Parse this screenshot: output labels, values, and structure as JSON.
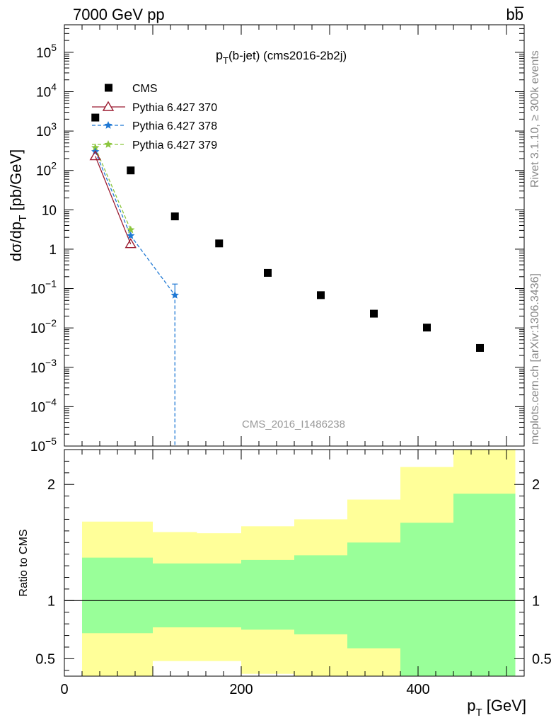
{
  "header": {
    "energy_label": "7000 GeV pp",
    "process_label": "bb̅"
  },
  "plot_title": {
    "main": "p",
    "sub": "T",
    "rest": "(b-jet) (cms2016-2b2j)"
  },
  "side_labels": {
    "rivet": "Rivet 3.1.10, ≥ 300k events",
    "mcplots": "mcplots.cern.ch [arXiv:1306.3436]"
  },
  "analysis_label": "CMS_2016_I1486238",
  "axes": {
    "ylabel_main": "dσ/dp",
    "ylabel_sub": "T",
    "ylabel_unit": " [pb/GeV]",
    "xlabel_main": "p",
    "xlabel_sub": "T",
    "xlabel_unit": " [GeV]",
    "ratio_ylabel": "Ratio to CMS",
    "x_ticks": [
      "0",
      "200",
      "400"
    ],
    "ratio_ticks": [
      "2",
      "1",
      "0.5"
    ]
  },
  "colors": {
    "cms": "#000000",
    "p370": "#9b1b30",
    "p378": "#1e78d4",
    "p379": "#8cc63f",
    "band_outer": "#ffff99",
    "band_inner": "#99ff99",
    "grey_text": "#888888"
  },
  "chart_data": {
    "type": "scatter",
    "xlim": [
      0,
      520
    ],
    "ylim": [
      1e-05,
      500000
    ],
    "ylog": true,
    "ratio_ylim": [
      0.35,
      2.3
    ],
    "legend": "top-left",
    "series": [
      {
        "name": "CMS",
        "x": [
          35,
          75,
          125,
          175,
          230,
          290,
          350,
          410,
          470
        ],
        "y": [
          2200,
          100,
          6.8,
          1.4,
          0.25,
          0.068,
          0.023,
          0.0102,
          0.0031
        ]
      },
      {
        "name": "Pythia 6.427 370",
        "x": [
          35,
          75
        ],
        "y": [
          230,
          1.35
        ]
      },
      {
        "name": "Pythia 6.427 378",
        "x": [
          35,
          75,
          125,
          125
        ],
        "y": [
          300,
          2.2,
          0.068,
          1e-05
        ]
      },
      {
        "name": "Pythia 6.427 379",
        "x": [
          35,
          75
        ],
        "y": [
          380,
          3.1
        ]
      }
    ],
    "ratio_bands": [
      {
        "x0": 20,
        "x1": 100,
        "outer_lo": 0.35,
        "outer_hi": 1.68,
        "inner_lo": 0.72,
        "inner_hi": 1.37
      },
      {
        "x0": 100,
        "x1": 150,
        "outer_lo": 0.48,
        "outer_hi": 1.59,
        "inner_lo": 0.77,
        "inner_hi": 1.32
      },
      {
        "x0": 150,
        "x1": 200,
        "outer_lo": 0.48,
        "outer_hi": 1.58,
        "inner_lo": 0.77,
        "inner_hi": 1.32
      },
      {
        "x0": 200,
        "x1": 260,
        "outer_lo": 0.37,
        "outer_hi": 1.64,
        "inner_lo": 0.75,
        "inner_hi": 1.35
      },
      {
        "x0": 260,
        "x1": 320,
        "outer_lo": 0.35,
        "outer_hi": 1.7,
        "inner_lo": 0.71,
        "inner_hi": 1.39
      },
      {
        "x0": 320,
        "x1": 380,
        "outer_lo": 0.35,
        "outer_hi": 1.87,
        "inner_lo": 0.59,
        "inner_hi": 1.5
      },
      {
        "x0": 380,
        "x1": 440,
        "outer_lo": 0.35,
        "outer_hi": 2.15,
        "inner_lo": 0.35,
        "inner_hi": 1.67
      },
      {
        "x0": 440,
        "x1": 510,
        "outer_lo": 0.35,
        "outer_hi": 2.3,
        "inner_lo": 0.35,
        "inner_hi": 1.92
      }
    ]
  }
}
